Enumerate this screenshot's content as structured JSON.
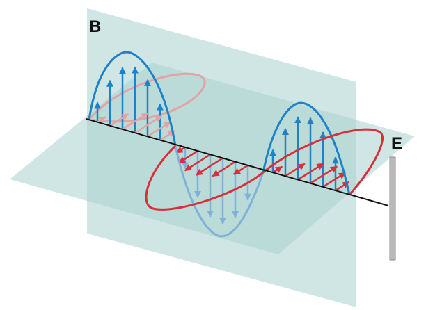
{
  "labels": {
    "b": "B",
    "e": "E"
  },
  "colors": {
    "plane": "#a9d2d0",
    "plane_edge": "#bfe1df",
    "b_wave": "#1e82c8",
    "b_wave_faded": "#7fb2d8",
    "e_wave": "#d8303a",
    "e_wave_faded": "#e3a2a6",
    "axis": "#111111",
    "pole": "#b9b9b9"
  }
}
